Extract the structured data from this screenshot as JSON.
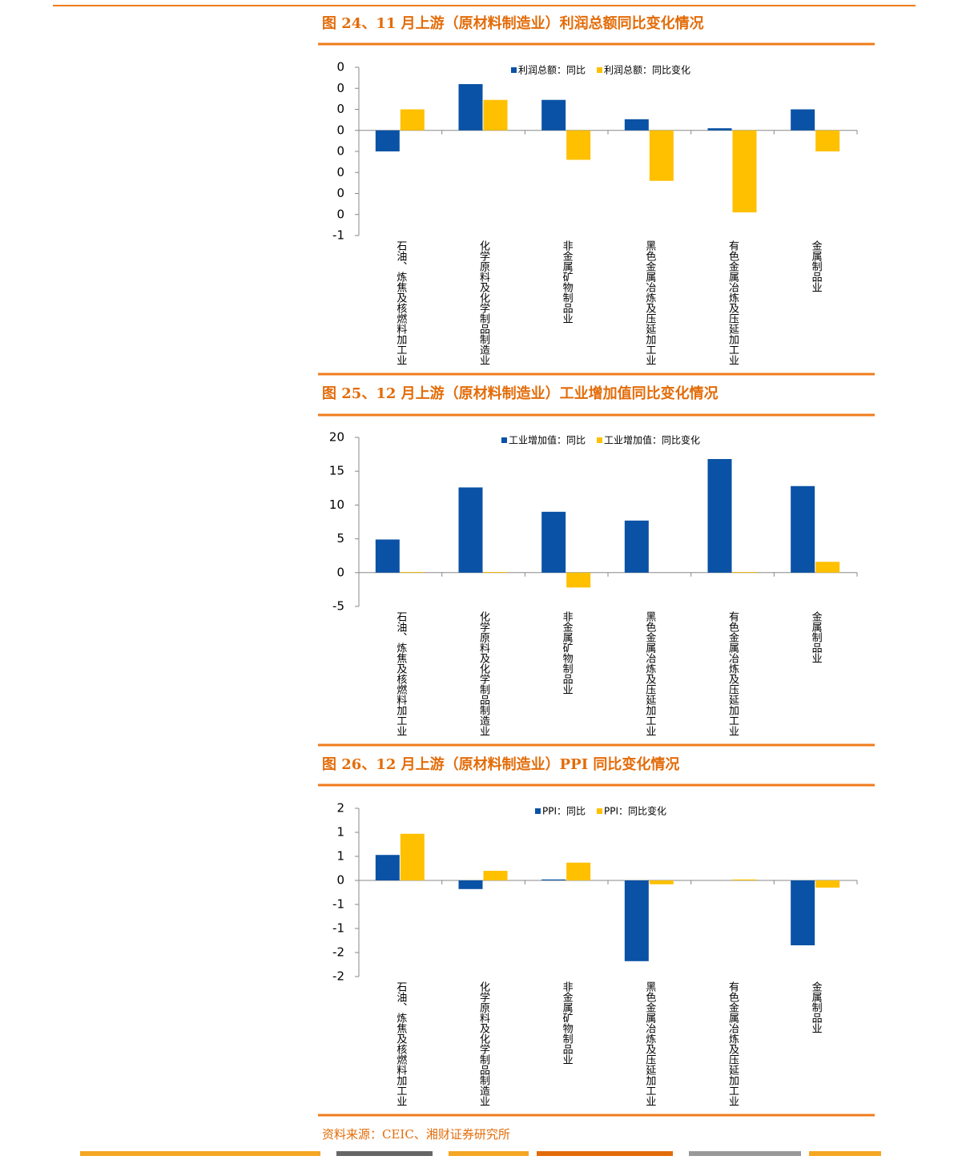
{
  "chart_data": [
    {
      "type": "bar",
      "title": "图 24、11 月上游（原材料制造业）利润总额同比变化情况",
      "categories": [
        "石油、炼焦及核燃料加工业",
        "化学原料及化学制品制造业",
        "非金属矿物制品业",
        "黑色金属冶炼及压延加工业",
        "有色金属冶炼及压延加工业",
        "金属制品业"
      ],
      "series": [
        {
          "name": "利润总额：同比",
          "color": "#0a52a5",
          "values": [
            -0.1,
            0.22,
            0.145,
            0.053,
            0.01,
            0.1
          ]
        },
        {
          "name": "利润总额：同比变化",
          "color": "#ffc000",
          "values": [
            0.1,
            0.145,
            -0.14,
            -0.24,
            -0.39,
            -0.1
          ]
        }
      ],
      "ylim": [
        -0.5,
        0.3
      ],
      "yticks": [
        {
          "value": -0.5,
          "label": "-1"
        },
        {
          "value": -0.4,
          "label": "0"
        },
        {
          "value": -0.3,
          "label": "0"
        },
        {
          "value": -0.2,
          "label": "0"
        },
        {
          "value": -0.1,
          "label": "0"
        },
        0,
        {
          "value": 0.1,
          "label": "0"
        },
        {
          "value": 0.2,
          "label": "0"
        },
        {
          "value": 0.3,
          "label": "0"
        }
      ],
      "legend": "top"
    },
    {
      "type": "bar",
      "title": "图 25、12 月上游（原材料制造业）工业增加值同比变化情况",
      "categories": [
        "石油、炼焦及核燃料加工业",
        "化学原料及化学制品制造业",
        "非金属矿物制品业",
        "黑色金属冶炼及压延加工业",
        "有色金属冶炼及压延加工业",
        "金属制品业"
      ],
      "series": [
        {
          "name": "工业增加值：同比",
          "color": "#0a52a5",
          "values": [
            4.9,
            12.6,
            9.0,
            7.7,
            16.8,
            12.8
          ]
        },
        {
          "name": "工业增加值：同比变化",
          "color": "#ffc000",
          "values": [
            0.1,
            0.1,
            -2.2,
            0,
            0.1,
            1.6
          ]
        }
      ],
      "ylim": [
        -5,
        20
      ],
      "yticks": [
        -5,
        0,
        5,
        10,
        15,
        20
      ],
      "legend": "top"
    },
    {
      "type": "bar",
      "title": "图 26、12 月上游（原材料制造业）PPI 同比变化情况",
      "categories": [
        "石油、炼焦及核燃料加工业",
        "化学原料及化学制品制造业",
        "非金属矿物制品业",
        "黑色金属冶炼及压延加工业",
        "有色金属冶炼及压延加工业",
        "金属制品业"
      ],
      "series": [
        {
          "name": "PPI：同比",
          "color": "#0a52a5",
          "values": [
            0.53,
            -0.18,
            0.02,
            -1.68,
            0,
            -1.35
          ]
        },
        {
          "name": "PPI：同比变化",
          "color": "#ffc000",
          "values": [
            0.97,
            0.2,
            0.37,
            -0.08,
            0.02,
            -0.15
          ]
        }
      ],
      "ylim": [
        -2,
        1.5
      ],
      "yticks": [
        {
          "value": -2,
          "label": "-2"
        },
        {
          "value": -1.5,
          "label": "-2"
        },
        {
          "value": -1,
          "label": "-1"
        },
        {
          "value": -0.5,
          "label": "-1"
        },
        0,
        {
          "value": 0.5,
          "label": "1"
        },
        {
          "value": 1,
          "label": "1"
        },
        {
          "value": 1.5,
          "label": "2"
        }
      ],
      "legend": "top"
    }
  ],
  "source": "资料来源：CEIC、湘财证券研究所"
}
